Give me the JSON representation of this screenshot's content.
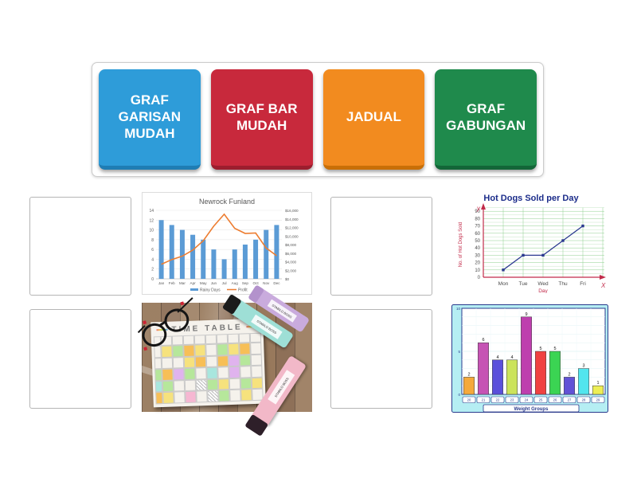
{
  "keywords_panel": {
    "items": [
      {
        "label": "GRAF GARISAN MUDAH",
        "color": "#2E9CD9",
        "edge": "#1F7DB4"
      },
      {
        "label": "GRAF BAR MUDAH",
        "color": "#C8293C",
        "edge": "#9C1E2E"
      },
      {
        "label": "JADUAL",
        "color": "#F28B1F",
        "edge": "#C96F07"
      },
      {
        "label": "GRAF GABUNGAN",
        "color": "#1F8A4C",
        "edge": "#136638"
      }
    ]
  },
  "chart_data": [
    {
      "type": "combo",
      "title": "Newrock Funland",
      "categories": [
        "Jan",
        "Feb",
        "Mar",
        "Apr",
        "May",
        "Jun",
        "Jul",
        "Aug",
        "Sep",
        "Oct",
        "Nov",
        "Dec"
      ],
      "series": [
        {
          "name": "Rainy Days",
          "type": "bar",
          "axis": "left",
          "color": "#5B9BD5",
          "values": [
            12,
            11,
            10,
            9,
            8,
            6,
            4,
            6,
            7,
            8,
            10,
            11
          ]
        },
        {
          "name": "Profit",
          "type": "line",
          "axis": "right",
          "color": "#ED7D31",
          "values": [
            3400,
            4500,
            5300,
            6700,
            8900,
            12300,
            15100,
            11800,
            10600,
            10700,
            7200,
            5400
          ]
        }
      ],
      "left_axis": {
        "min": 0,
        "max": 14,
        "step": 2
      },
      "right_axis": {
        "min": 0,
        "max": 16000,
        "step": 2000
      },
      "right_tick_labels": [
        "$16,000",
        "$14,000",
        "$12,000",
        "$10,000",
        "$8,000",
        "$6,000",
        "$4,000",
        "$2,000",
        "$0"
      ],
      "legend_position": "bottom",
      "grid": true,
      "title_color": "#595959"
    },
    {
      "type": "line",
      "title": "Hot Dogs Sold per Day",
      "categories": [
        "Mon",
        "Tue",
        "Wed",
        "Thu",
        "Fri"
      ],
      "values": [
        10,
        30,
        30,
        50,
        70
      ],
      "xlabel": "Day",
      "ylabel": "No. of Hot Dogs Sold",
      "axis_letter_x": "X",
      "axis_letter_y": "y",
      "ylim": [
        0,
        90
      ],
      "ystep": 10,
      "grid": true,
      "colors": {
        "title": "#1B2C8A",
        "line": "#2B3990",
        "axis": "#C22B4A",
        "grid_major": "#8fcf8f",
        "grid_minor": "#c6e6c6",
        "ticks": "#4a4a4a"
      }
    },
    {
      "type": "bar",
      "title": "",
      "xlabel": "Weight Groups",
      "categories": [
        "20",
        "21",
        "22",
        "23",
        "24",
        "25",
        "26",
        "27",
        "28",
        "29"
      ],
      "values": [
        2,
        6,
        4,
        4,
        9,
        5,
        5,
        2,
        3,
        1
      ],
      "bar_colors": [
        "#F5A93B",
        "#C653B4",
        "#5A50DB",
        "#CBE35B",
        "#BE3FAE",
        "#F04141",
        "#3BD453",
        "#6152D6",
        "#52E5EE",
        "#EDEE55"
      ],
      "ylim": [
        0,
        10
      ],
      "yticks": [
        0,
        5,
        10
      ],
      "grid": true,
      "colors": {
        "background": "#B5EEF3",
        "frame": "#2A3A8C",
        "plot": "#ffffff",
        "label_text": "#2A3A8C"
      }
    }
  ],
  "photo": {
    "title": "TIME TABLE",
    "highlighter_label": "STABILO BOSS",
    "cell_colors": {
      "y": "#f6e27d",
      "o": "#f7bf57",
      "g": "#b6e79b",
      "p": "#e0b3ee",
      "k": "#f6b7d2",
      "c": "#a8e6de"
    },
    "grid_rows": [
      "..........",
      ".ygoy.gyo.",
      "...yo.opg.",
      "gopg.c.p..",
      "cg..xgy.gy",
      "oy.k.xg.y."
    ]
  }
}
